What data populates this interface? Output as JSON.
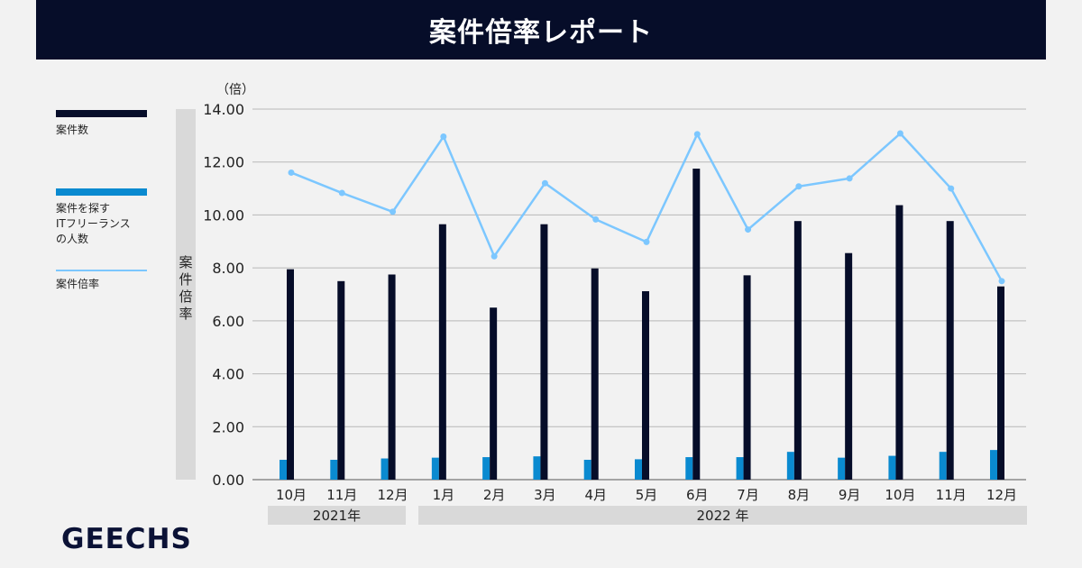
{
  "header": {
    "title": "案件倍率レポート"
  },
  "legend": [
    {
      "label": "案件数",
      "color": "#060d29",
      "kind": "bar"
    },
    {
      "label": "案件を探す\nITフリーランス\nの人数",
      "color": "#0a8ad0",
      "kind": "bar"
    },
    {
      "label": "案件倍率",
      "color": "#7cc7ff",
      "kind": "line"
    }
  ],
  "axis": {
    "ylabel": "案件倍率",
    "unit": "（倍）"
  },
  "years": [
    "2021年",
    "2022 年"
  ],
  "logo": "GEECHS",
  "chart_data": {
    "type": "bar",
    "categories": [
      "10月",
      "11月",
      "12月",
      "1月",
      "2月",
      "3月",
      "4月",
      "5月",
      "6月",
      "7月",
      "8月",
      "9月",
      "10月",
      "11月",
      "12月"
    ],
    "ylim": [
      0,
      14
    ],
    "yticks": [
      "0.00",
      "2.00",
      "4.00",
      "6.00",
      "8.00",
      "10.00",
      "12.00",
      "14.00"
    ],
    "grid": true,
    "legend_position": "left",
    "series": [
      {
        "name": "案件数",
        "kind": "bar",
        "color": "#060d29",
        "values": [
          7.95,
          7.5,
          7.75,
          9.65,
          6.5,
          9.65,
          7.98,
          7.12,
          11.75,
          7.72,
          9.77,
          8.56,
          10.37,
          9.77,
          7.3
        ]
      },
      {
        "name": "案件を探すITフリーランスの人数",
        "kind": "bar",
        "color": "#0a8ad0",
        "values": [
          0.75,
          0.75,
          0.8,
          0.83,
          0.85,
          0.88,
          0.75,
          0.77,
          0.85,
          0.85,
          1.05,
          0.83,
          0.9,
          1.05,
          1.12
        ]
      },
      {
        "name": "案件倍率",
        "kind": "line",
        "color": "#7cc7ff",
        "values": [
          11.6,
          10.83,
          10.12,
          12.96,
          8.44,
          11.2,
          9.83,
          8.98,
          13.05,
          9.45,
          11.08,
          11.38,
          13.08,
          11.0,
          7.5
        ]
      }
    ]
  }
}
